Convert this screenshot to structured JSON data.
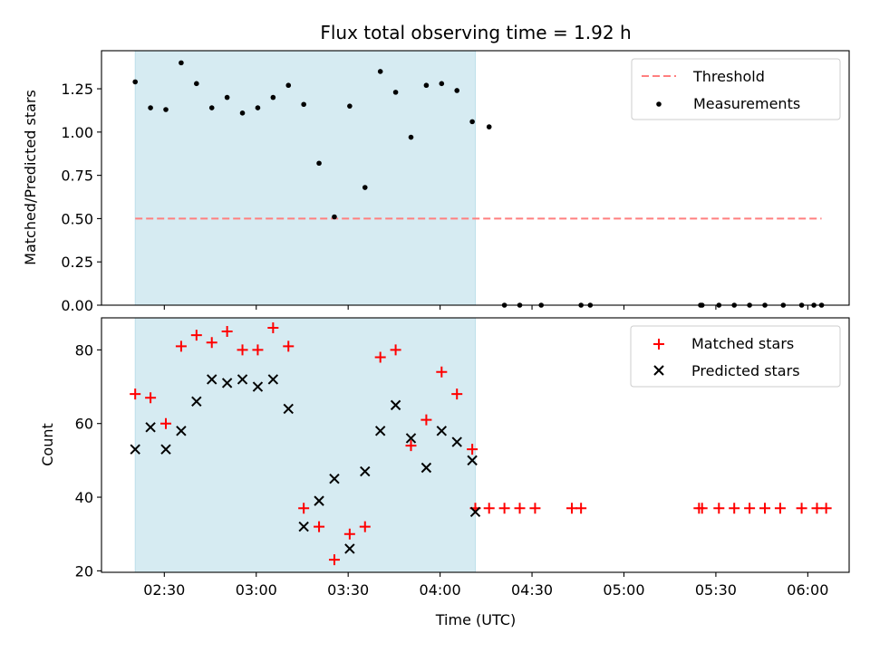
{
  "chart_data": [
    {
      "type": "scatter",
      "title": "Flux total observing time = 1.92 h",
      "xlabel": "",
      "ylabel": "Matched/Predicted stars",
      "ylim": [
        0,
        1.47
      ],
      "yticks": [
        0.0,
        0.25,
        0.5,
        0.75,
        1.0,
        1.25
      ],
      "ytick_labels": [
        "0.00",
        "0.25",
        "0.50",
        "0.75",
        "1.00",
        "1.25"
      ],
      "xlim_minutes": [
        129.5,
        373.5
      ],
      "shaded_span_minutes": [
        140.5,
        251.5
      ],
      "shade_color": "#add8e6",
      "threshold": {
        "label": "Threshold",
        "value": 0.5,
        "x_range_minutes": [
          140.5,
          364.5
        ],
        "color": "#ff7f7f"
      },
      "legend": {
        "position": "top-right",
        "entries": [
          "Threshold",
          "Measurements"
        ]
      },
      "series": [
        {
          "name": "Measurements",
          "color": "#000000",
          "x_minutes": [
            140.5,
            145.5,
            150.5,
            155.5,
            160.5,
            165.5,
            170.5,
            175.5,
            180.5,
            185.5,
            190.5,
            195.5,
            200.5,
            205.5,
            210.5,
            215.5,
            220.5,
            225.5,
            230.5,
            235.5,
            240.5,
            245.5,
            250.5,
            256,
            261,
            266,
            273,
            286,
            289,
            325,
            325.5,
            331,
            336,
            341,
            346,
            352,
            358,
            362,
            364.5
          ],
          "values": [
            1.29,
            1.14,
            1.13,
            1.4,
            1.28,
            1.14,
            1.2,
            1.11,
            1.14,
            1.2,
            1.27,
            1.16,
            0.82,
            0.51,
            1.15,
            0.68,
            1.35,
            1.23,
            0.97,
            1.27,
            1.28,
            1.24,
            1.06,
            1.03,
            0,
            0,
            0,
            0,
            0,
            0,
            0,
            0,
            0,
            0,
            0,
            0,
            0,
            0,
            0
          ]
        }
      ]
    },
    {
      "type": "scatter",
      "title": "",
      "xlabel": "Time (UTC)",
      "ylabel": "Count",
      "ylim": [
        19.6,
        88.7
      ],
      "yticks": [
        20,
        40,
        60,
        80
      ],
      "ytick_labels": [
        "20",
        "40",
        "60",
        "80"
      ],
      "xlim_minutes": [
        129.5,
        373.5
      ],
      "xticks_minutes": [
        150,
        180,
        210,
        240,
        270,
        300,
        330,
        360
      ],
      "xtick_labels": [
        "02:30",
        "03:00",
        "03:30",
        "04:00",
        "04:30",
        "05:00",
        "05:30",
        "06:00"
      ],
      "shaded_span_minutes": [
        140.5,
        251.5
      ],
      "shade_color": "#add8e6",
      "legend": {
        "position": "top-right",
        "entries": [
          "Matched stars",
          "Predicted stars"
        ]
      },
      "series": [
        {
          "name": "Matched stars",
          "marker": "+",
          "color": "#ff0000",
          "x_minutes": [
            140.5,
            145.5,
            150.5,
            155.5,
            160.5,
            165.5,
            170.5,
            175.5,
            180.5,
            185.5,
            190.5,
            195.5,
            200.5,
            205.5,
            210.5,
            215.5,
            220.5,
            225.5,
            230.5,
            235.5,
            240.5,
            245.5,
            250.5,
            251.5,
            256,
            261,
            266,
            271,
            283,
            286,
            324.5,
            325.5,
            331,
            336,
            341,
            346,
            351,
            358,
            363,
            366
          ],
          "values": [
            68,
            67,
            60,
            81,
            84,
            82,
            85,
            80,
            80,
            86,
            81,
            37,
            32,
            23,
            30,
            32,
            78,
            80,
            54,
            61,
            74,
            68,
            53,
            37,
            37,
            37,
            37,
            37,
            37,
            37,
            37,
            37,
            37,
            37,
            37,
            37,
            37,
            37,
            37,
            37
          ]
        },
        {
          "name": "Predicted stars",
          "marker": "x",
          "color": "#000000",
          "x_minutes": [
            140.5,
            145.5,
            150.5,
            155.5,
            160.5,
            165.5,
            170.5,
            175.5,
            180.5,
            185.5,
            190.5,
            195.5,
            200.5,
            205.5,
            210.5,
            215.5,
            220.5,
            225.5,
            230.5,
            235.5,
            240.5,
            245.5,
            250.5,
            251.5
          ],
          "values": [
            53,
            59,
            53,
            58,
            66,
            72,
            71,
            72,
            70,
            72,
            64,
            32,
            39,
            45,
            26,
            47,
            58,
            65,
            56,
            48,
            58,
            55,
            50,
            36
          ]
        }
      ]
    }
  ]
}
